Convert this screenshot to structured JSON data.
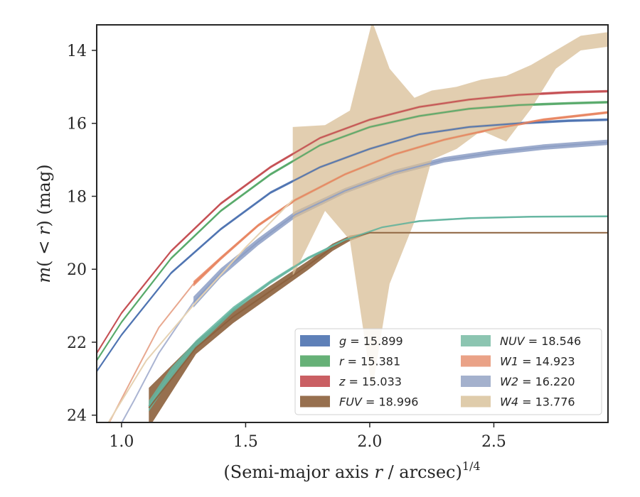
{
  "chart_data": {
    "type": "line",
    "xlabel": "(Semi-major axis r / arcsec)^1/4",
    "xlabel_parts": {
      "prefix": "(Semi-major axis ",
      "var": "r",
      "middle": " / arcsec)",
      "sup": "1/4"
    },
    "ylabel": "m(<r) (mag)",
    "ylabel_parts": {
      "m": "m",
      "open": "(",
      "lt": " < ",
      "r": "r",
      "close": ")",
      "unit": " (mag)"
    },
    "xlim": [
      0.9,
      2.96
    ],
    "ylim": [
      24.2,
      13.3
    ],
    "y_inverted": true,
    "x_ticks": [
      1.0,
      1.5,
      2.0,
      2.5
    ],
    "x_tick_labels": [
      "1.0",
      "1.5",
      "2.0",
      "2.5"
    ],
    "y_ticks": [
      14,
      16,
      18,
      20,
      22,
      24
    ],
    "y_tick_labels": [
      "14",
      "16",
      "18",
      "20",
      "22",
      "24"
    ],
    "grid": false,
    "legend_position": "lower-right",
    "legend_columns": 2,
    "series": [
      {
        "name": "g = 15.899",
        "band": "g",
        "value": "15.899",
        "color": "#4c72b0",
        "x": [
          0.9,
          1.0,
          1.2,
          1.4,
          1.6,
          1.8,
          2.0,
          2.2,
          2.4,
          2.6,
          2.8,
          2.96
        ],
        "y": [
          22.8,
          21.8,
          20.1,
          18.9,
          17.9,
          17.2,
          16.7,
          16.3,
          16.1,
          16.0,
          15.93,
          15.9
        ],
        "width": [
          0.07,
          0.07,
          0.07,
          0.07,
          0.07,
          0.07,
          0.07,
          0.07,
          0.07,
          0.07,
          0.07,
          0.07
        ]
      },
      {
        "name": "r = 15.381",
        "band": "r",
        "value": "15.381",
        "color": "#55a868",
        "x": [
          0.9,
          1.0,
          1.2,
          1.4,
          1.6,
          1.8,
          2.0,
          2.2,
          2.4,
          2.6,
          2.8,
          2.96
        ],
        "y": [
          22.5,
          21.45,
          19.7,
          18.4,
          17.4,
          16.6,
          16.1,
          15.8,
          15.6,
          15.5,
          15.45,
          15.42
        ],
        "width": [
          0.07,
          0.07,
          0.07,
          0.07,
          0.07,
          0.07,
          0.07,
          0.07,
          0.07,
          0.07,
          0.07,
          0.07
        ]
      },
      {
        "name": "z = 15.033",
        "band": "z",
        "value": "15.033",
        "color": "#c44e52",
        "x": [
          0.9,
          1.0,
          1.2,
          1.4,
          1.6,
          1.8,
          2.0,
          2.2,
          2.4,
          2.6,
          2.8,
          2.96
        ],
        "y": [
          22.3,
          21.2,
          19.5,
          18.2,
          17.2,
          16.4,
          15.9,
          15.55,
          15.35,
          15.22,
          15.15,
          15.12
        ],
        "width": [
          0.07,
          0.07,
          0.07,
          0.07,
          0.07,
          0.07,
          0.07,
          0.07,
          0.07,
          0.07,
          0.07,
          0.07
        ]
      },
      {
        "name": "FUV = 18.996",
        "band": "FUV",
        "value": "18.996",
        "color": "#8c613c",
        "x": [
          1.11,
          1.3,
          1.45,
          1.6,
          1.75,
          1.85,
          1.92,
          2.0,
          2.2,
          2.5,
          2.96
        ],
        "y": [
          23.8,
          22.15,
          21.3,
          20.6,
          19.9,
          19.4,
          19.15,
          19.0,
          19.0,
          19.0,
          19.0
        ],
        "width": [
          1.1,
          0.35,
          0.35,
          0.3,
          0.25,
          0.2,
          0.15,
          0.03,
          0.03,
          0.03,
          0.03
        ]
      },
      {
        "name": "NUV = 18.546",
        "band": "NUV",
        "value": "18.546",
        "color": "#64b5a0",
        "x": [
          1.11,
          1.2,
          1.3,
          1.45,
          1.6,
          1.75,
          1.9,
          2.05,
          2.2,
          2.4,
          2.65,
          2.96
        ],
        "y": [
          23.75,
          22.85,
          22.05,
          21.1,
          20.35,
          19.7,
          19.2,
          18.85,
          18.68,
          18.6,
          18.56,
          18.55
        ],
        "width": [
          0.3,
          0.3,
          0.2,
          0.15,
          0.1,
          0.08,
          0.06,
          0.05,
          0.05,
          0.05,
          0.05,
          0.05
        ]
      },
      {
        "name": "W1 = 14.923",
        "band": "W1",
        "value": "14.923",
        "color": "#e8845f",
        "x": [
          1.29,
          1.4,
          1.55,
          1.7,
          1.9,
          2.1,
          2.3,
          2.5,
          2.7,
          2.96
        ],
        "y": [
          20.4,
          19.7,
          18.8,
          18.1,
          17.4,
          16.85,
          16.45,
          16.15,
          15.9,
          15.7
        ],
        "width": [
          0.15,
          0.1,
          0.08,
          0.08,
          0.07,
          0.07,
          0.07,
          0.07,
          0.07,
          0.07
        ]
      },
      {
        "name": "W2 = 16.220",
        "band": "W2",
        "value": "16.220",
        "color": "#8c9dc4",
        "x": [
          1.29,
          1.4,
          1.55,
          1.7,
          1.9,
          2.1,
          2.3,
          2.5,
          2.7,
          2.96
        ],
        "y": [
          20.9,
          20.1,
          19.25,
          18.5,
          17.85,
          17.35,
          17.0,
          16.8,
          16.65,
          16.52
        ],
        "width": [
          0.3,
          0.25,
          0.2,
          0.18,
          0.15,
          0.15,
          0.15,
          0.15,
          0.15,
          0.15
        ]
      },
      {
        "name": "W4 = 13.776",
        "band": "W4",
        "value": "13.776",
        "color": "#d8be95",
        "x": [
          1.69,
          1.82,
          1.92,
          2.01,
          2.08,
          2.18,
          2.25,
          2.35,
          2.45,
          2.55,
          2.65,
          2.75,
          2.85,
          2.96
        ],
        "y_lower": [
          20.2,
          18.4,
          19.2,
          23.3,
          20.4,
          18.7,
          17.0,
          16.7,
          16.2,
          16.5,
          15.6,
          14.5,
          14.0,
          13.9
        ],
        "y_upper": [
          16.1,
          16.05,
          15.65,
          13.2,
          14.5,
          15.3,
          15.1,
          15.0,
          14.8,
          14.7,
          14.4,
          14.0,
          13.6,
          13.5
        ]
      }
    ]
  },
  "legend": {
    "left": [
      {
        "sym": "g",
        "italic": true,
        "rest": " = 15.899",
        "color": "#4c72b0"
      },
      {
        "sym": "r",
        "italic": true,
        "rest": " = 15.381",
        "color": "#55a868"
      },
      {
        "sym": "z",
        "italic": true,
        "rest": " = 15.033",
        "color": "#c44e52"
      },
      {
        "sym": "FUV",
        "italic": true,
        "rest": " = 18.996",
        "color": "#8c613c"
      }
    ],
    "right": [
      {
        "sym": "NUV",
        "italic": true,
        "rest": " = 18.546",
        "color": "#7fbfa8"
      },
      {
        "sym": "W1",
        "italic": true,
        "rest": " = 14.923",
        "color": "#e8987a"
      },
      {
        "sym": "W2",
        "italic": true,
        "rest": " = 16.220",
        "color": "#9aa8c8"
      },
      {
        "sym": "W4",
        "italic": true,
        "rest": " = 13.776",
        "color": "#dcc6a2"
      }
    ]
  }
}
